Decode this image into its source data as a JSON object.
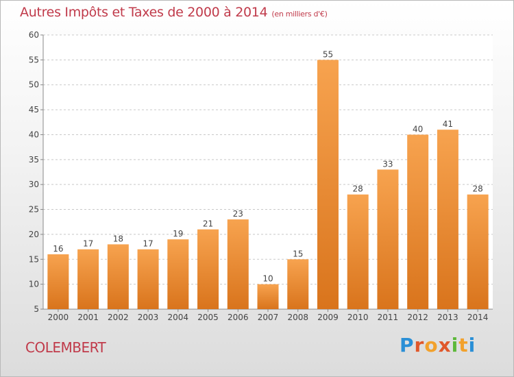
{
  "title": "Autres Impôts et Taxes de 2000 à 2014",
  "unit": "(en milliers d'€)",
  "commune": "COLEMBERT",
  "logo": "Proxiti",
  "colors": {
    "bar_top": "#f7a34f",
    "bar_bottom": "#d9741c",
    "title": "#c03a4a",
    "grid": "#c8c8c8"
  },
  "chart_data": {
    "type": "bar",
    "categories": [
      "2000",
      "2001",
      "2002",
      "2003",
      "2004",
      "2005",
      "2006",
      "2007",
      "2008",
      "2009",
      "2010",
      "2011",
      "2012",
      "2013",
      "2014"
    ],
    "values": [
      16,
      17,
      18,
      17,
      19,
      21,
      23,
      10,
      15,
      55,
      28,
      33,
      40,
      41,
      28
    ],
    "ylim": [
      5,
      60
    ],
    "yticks": [
      5,
      10,
      15,
      20,
      25,
      30,
      35,
      40,
      45,
      50,
      55,
      60
    ],
    "grid": "horizontal dashed",
    "legend": "none"
  }
}
